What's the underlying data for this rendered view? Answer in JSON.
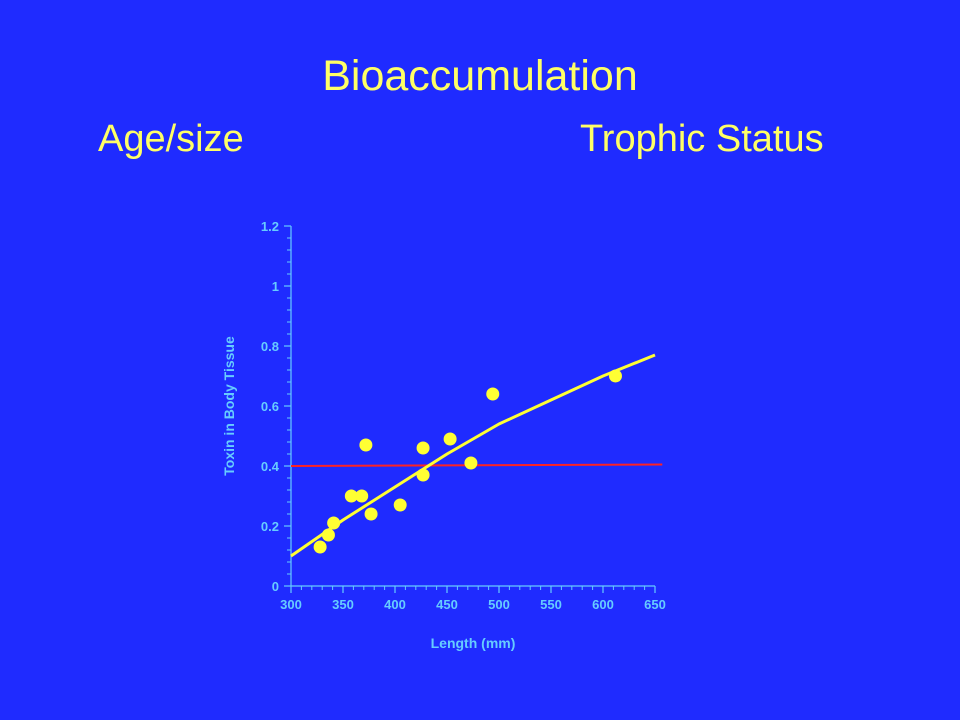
{
  "slide": {
    "title": "Bioaccumulation",
    "subtitle_left": "Age/size",
    "subtitle_right": "Trophic Status"
  },
  "colors": {
    "background": "#1f2bff",
    "title_text": "#ffff66",
    "axis": "#66ccff",
    "points": "#ffff33",
    "trend_line": "#ffff33",
    "reference_line": "#ff2222"
  },
  "chart_data": {
    "type": "scatter",
    "xlabel": "Length (mm)",
    "ylabel": "Toxin in Body Tissue",
    "xlim": [
      300,
      650
    ],
    "ylim": [
      0,
      1.2
    ],
    "x_ticks": [
      "300",
      "350",
      "400",
      "450",
      "500",
      "550",
      "600",
      "650"
    ],
    "y_ticks": [
      "0",
      "0.2",
      "0.4",
      "0.6",
      "0.8",
      "1",
      "1.2"
    ],
    "grid": false,
    "points": [
      {
        "x": 328,
        "y": 0.13
      },
      {
        "x": 336,
        "y": 0.17
      },
      {
        "x": 341,
        "y": 0.21
      },
      {
        "x": 358,
        "y": 0.3
      },
      {
        "x": 368,
        "y": 0.3
      },
      {
        "x": 372,
        "y": 0.47
      },
      {
        "x": 377,
        "y": 0.24
      },
      {
        "x": 405,
        "y": 0.27
      },
      {
        "x": 427,
        "y": 0.46
      },
      {
        "x": 427,
        "y": 0.37
      },
      {
        "x": 453,
        "y": 0.49
      },
      {
        "x": 473,
        "y": 0.41
      },
      {
        "x": 494,
        "y": 0.64
      },
      {
        "x": 612,
        "y": 0.7
      }
    ],
    "trend_curve": [
      {
        "x": 300,
        "y": 0.1
      },
      {
        "x": 350,
        "y": 0.22
      },
      {
        "x": 400,
        "y": 0.33
      },
      {
        "x": 450,
        "y": 0.44
      },
      {
        "x": 500,
        "y": 0.54
      },
      {
        "x": 550,
        "y": 0.62
      },
      {
        "x": 600,
        "y": 0.7
      },
      {
        "x": 650,
        "y": 0.77
      }
    ],
    "reference_line": {
      "y_start": 0.4,
      "y_end": 0.405,
      "x_start": 300,
      "x_end": 657
    }
  }
}
